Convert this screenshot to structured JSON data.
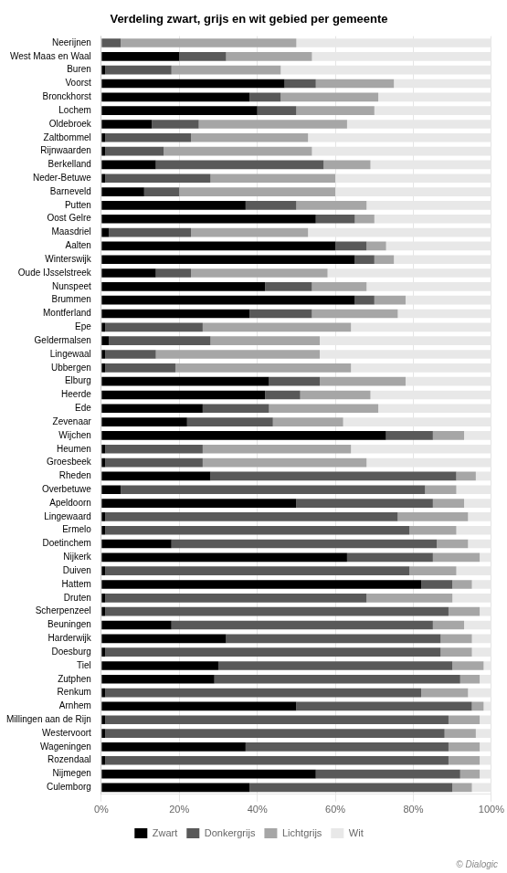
{
  "chart_data": {
    "type": "bar",
    "orientation": "horizontal",
    "stacked": true,
    "title": "Verdeling zwart, grijs en wit gebied per gemeente",
    "categories": [
      "Neerijnen",
      "West Maas en Waal",
      "Buren",
      "Voorst",
      "Bronckhorst",
      "Lochem",
      "Oldebroek",
      "Zaltbommel",
      "Rijnwaarden",
      "Berkelland",
      "Neder-Betuwe",
      "Barneveld",
      "Putten",
      "Oost Gelre",
      "Maasdriel",
      "Aalten",
      "Winterswijk",
      "Oude IJsselstreek",
      "Nunspeet",
      "Brummen",
      "Montferland",
      "Epe",
      "Geldermalsen",
      "Lingewaal",
      "Ubbergen",
      "Elburg",
      "Heerde",
      "Ede",
      "Zevenaar",
      "Wijchen",
      "Heumen",
      "Groesbeek",
      "Rheden",
      "Overbetuwe",
      "Apeldoorn",
      "Lingewaard",
      "Ermelo",
      "Doetinchem",
      "Nijkerk",
      "Duiven",
      "Hattem",
      "Druten",
      "Scherpenzeel",
      "Beuningen",
      "Harderwijk",
      "Doesburg",
      "Tiel",
      "Zutphen",
      "Renkum",
      "Arnhem",
      "Millingen aan de Rijn",
      "Westervoort",
      "Wageningen",
      "Rozendaal",
      "Nijmegen",
      "Culemborg"
    ],
    "series": [
      {
        "name": "Zwart",
        "color": "#000000",
        "values": [
          0,
          20,
          1,
          47,
          38,
          40,
          13,
          1,
          1,
          14,
          1,
          11,
          37,
          55,
          2,
          60,
          65,
          14,
          42,
          65,
          38,
          1,
          2,
          1,
          1,
          43,
          42,
          26,
          22,
          73,
          1,
          1,
          28,
          5,
          50,
          1,
          1,
          18,
          63,
          1,
          82,
          1,
          1,
          18,
          32,
          1,
          30,
          29,
          1,
          50,
          1,
          1,
          37,
          1,
          55,
          38
        ]
      },
      {
        "name": "Donkergrijs",
        "color": "#595959",
        "values": [
          5,
          12,
          17,
          8,
          8,
          10,
          12,
          22,
          15,
          43,
          27,
          9,
          13,
          10,
          21,
          8,
          5,
          9,
          12,
          5,
          16,
          25,
          26,
          13,
          18,
          13,
          9,
          17,
          22,
          12,
          25,
          25,
          63,
          78,
          35,
          75,
          78,
          68,
          22,
          78,
          8,
          67,
          88,
          67,
          55,
          86,
          60,
          63,
          81,
          45,
          88,
          87,
          52,
          88,
          37,
          52
        ]
      },
      {
        "name": "Lichtgrijs",
        "color": "#a6a6a6",
        "values": [
          45,
          22,
          28,
          20,
          25,
          20,
          38,
          30,
          38,
          12,
          32,
          40,
          18,
          5,
          30,
          5,
          5,
          35,
          14,
          8,
          22,
          38,
          28,
          42,
          45,
          22,
          18,
          28,
          18,
          8,
          38,
          42,
          5,
          8,
          8,
          18,
          12,
          8,
          12,
          12,
          5,
          22,
          8,
          8,
          8,
          8,
          8,
          5,
          12,
          3,
          8,
          8,
          8,
          8,
          5,
          5
        ]
      },
      {
        "name": "Wit",
        "color": "#e8e8e8",
        "values": [
          50,
          46,
          54,
          25,
          29,
          30,
          37,
          47,
          46,
          31,
          40,
          40,
          32,
          30,
          47,
          27,
          25,
          42,
          32,
          22,
          24,
          36,
          44,
          44,
          36,
          22,
          31,
          29,
          38,
          7,
          36,
          32,
          4,
          9,
          7,
          6,
          9,
          6,
          3,
          9,
          5,
          10,
          3,
          7,
          5,
          5,
          2,
          3,
          6,
          2,
          3,
          4,
          3,
          3,
          3,
          5
        ]
      }
    ],
    "xlim": [
      0,
      100
    ],
    "xticks": [
      {
        "value": 0,
        "label": "0%"
      },
      {
        "value": 20,
        "label": "20%"
      },
      {
        "value": 40,
        "label": "40%"
      },
      {
        "value": 60,
        "label": "60%"
      },
      {
        "value": 80,
        "label": "80%"
      },
      {
        "value": 100,
        "label": "100%"
      }
    ],
    "grid": true,
    "legend": "bottom",
    "annotations": [
      "© Dialogic"
    ]
  }
}
